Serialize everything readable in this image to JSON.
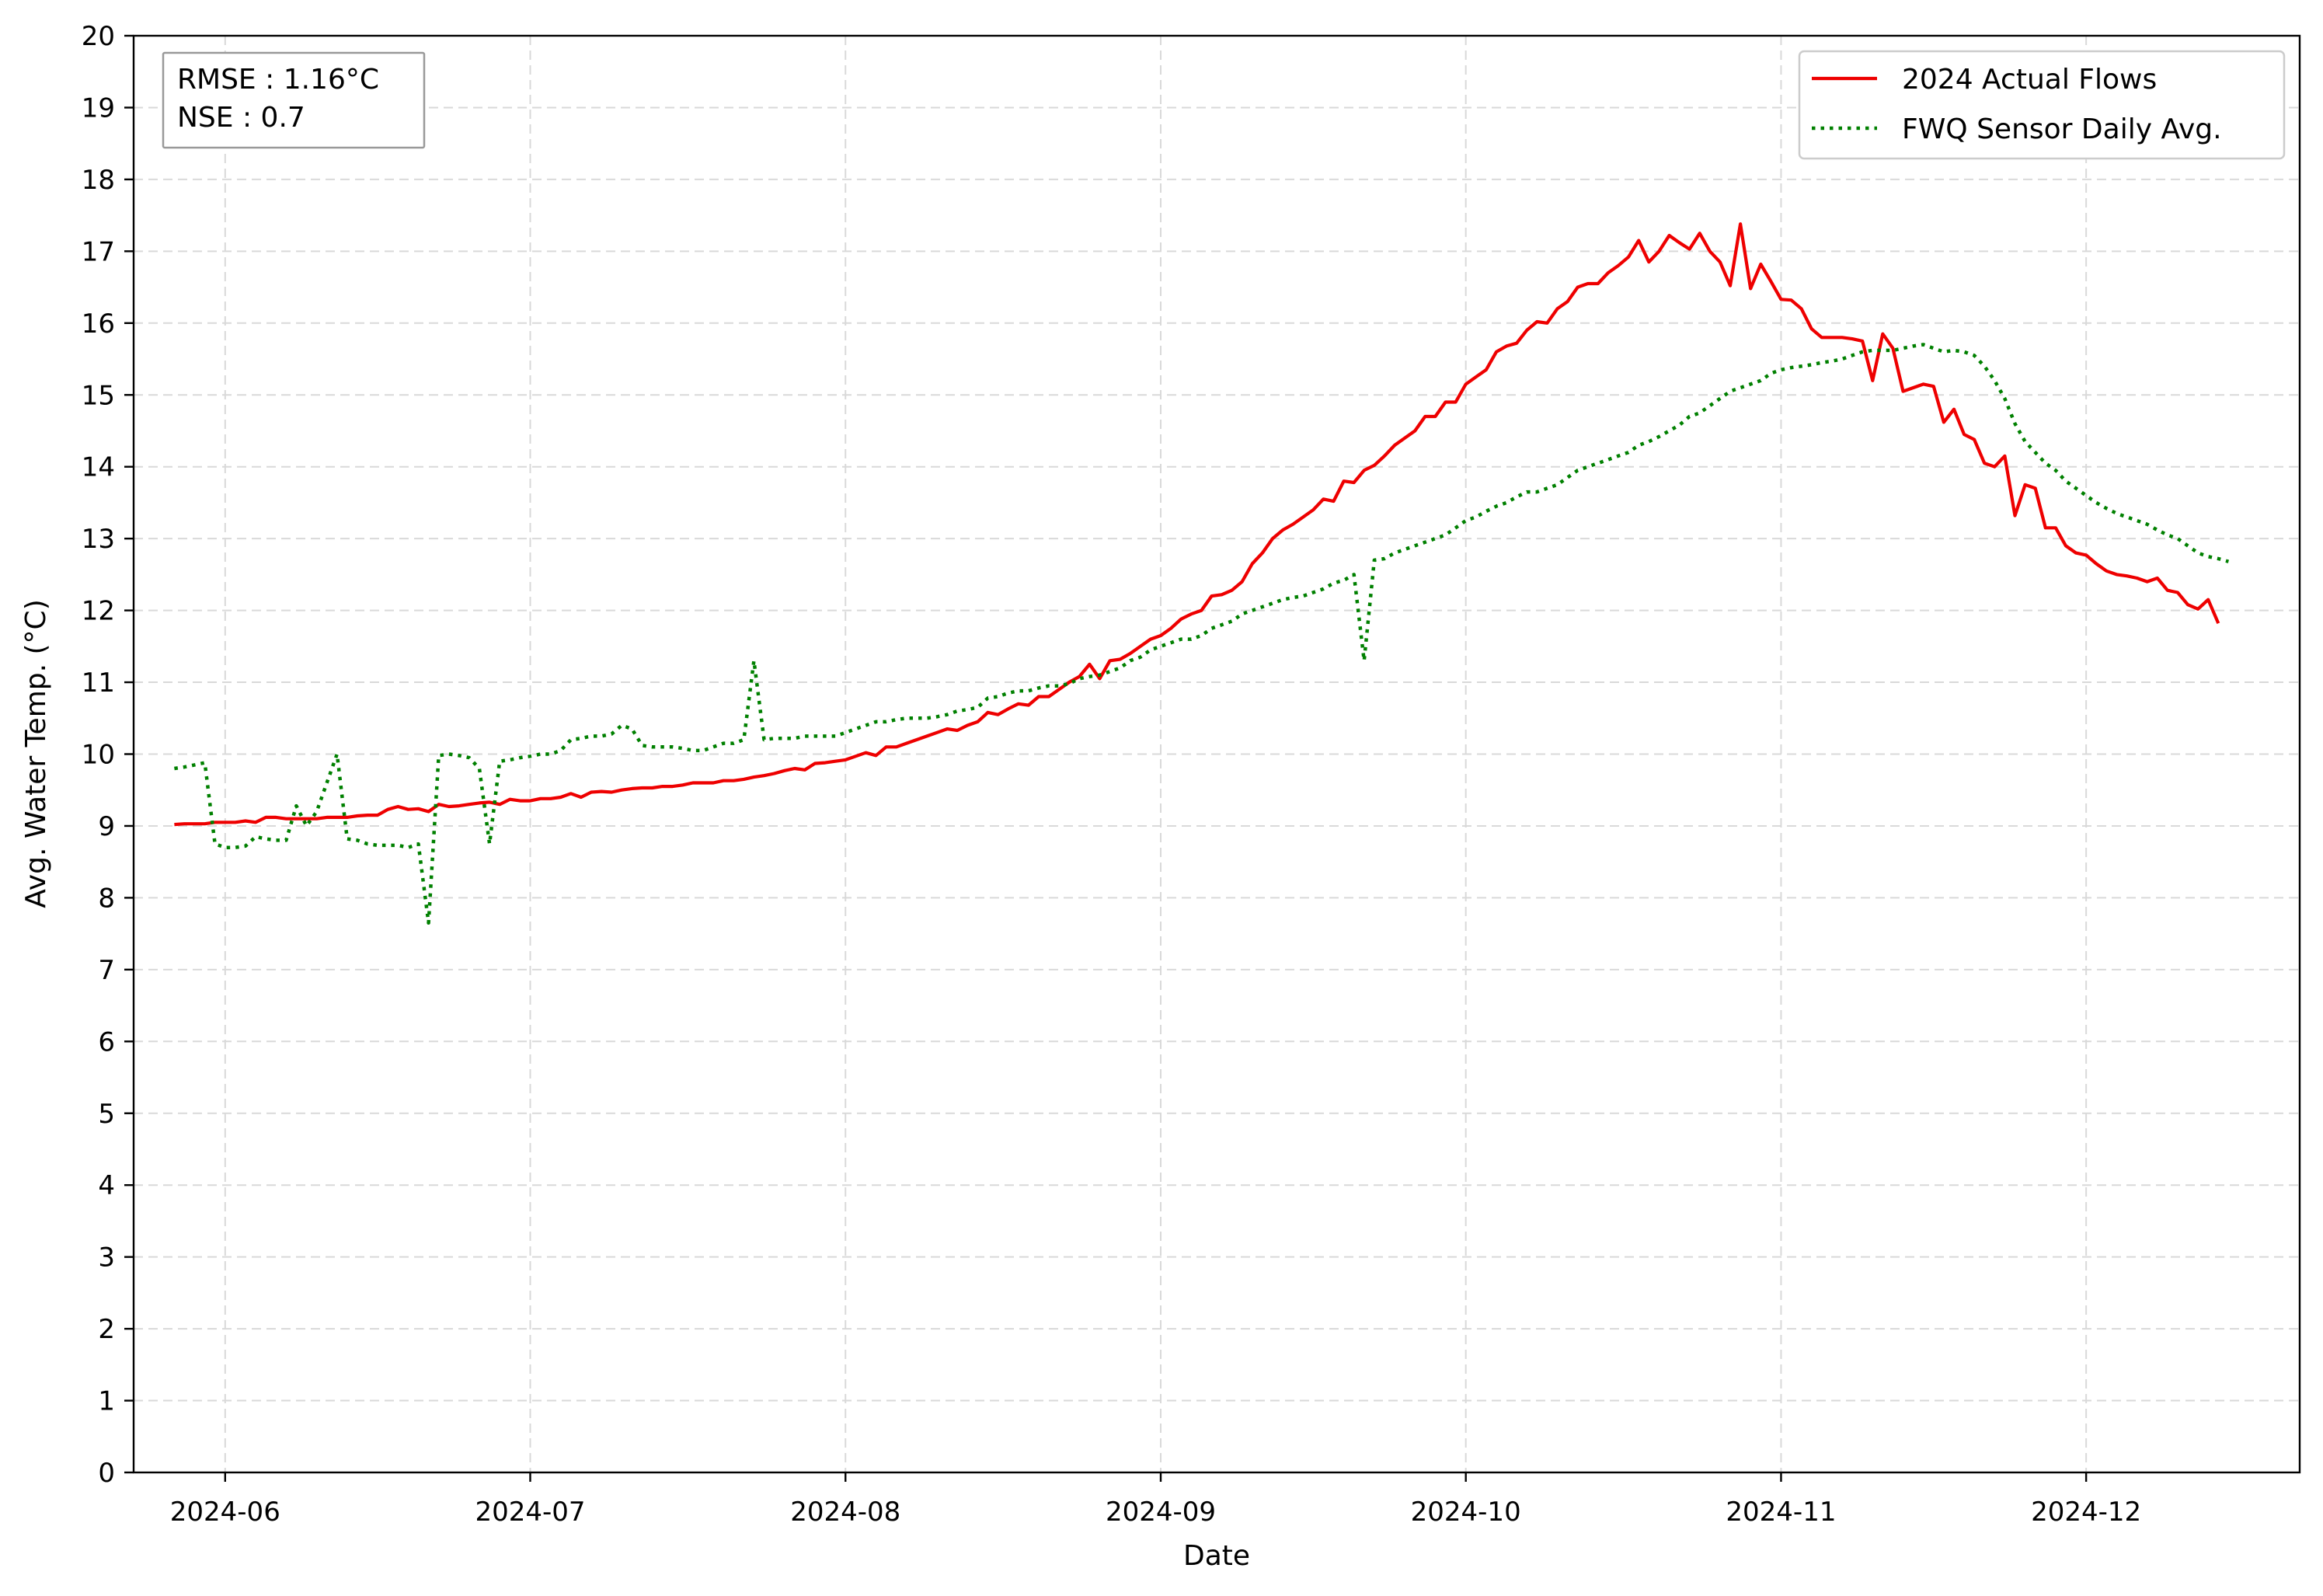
{
  "chart_data": {
    "type": "line",
    "xlabel": "Date",
    "ylabel": "Avg. Water Temp. (°C)",
    "x_start": "2024-05-27",
    "x_end": "2024-12-15",
    "xlim": [
      "2024-05-23",
      "2024-12-22"
    ],
    "ylim": [
      0,
      20
    ],
    "yticks": [
      0,
      1,
      2,
      3,
      4,
      5,
      6,
      7,
      8,
      9,
      10,
      11,
      12,
      13,
      14,
      15,
      16,
      17,
      18,
      19,
      20
    ],
    "xticks": [
      {
        "date": "2024-06-01",
        "label": "2024-06"
      },
      {
        "date": "2024-07-01",
        "label": "2024-07"
      },
      {
        "date": "2024-08-01",
        "label": "2024-08"
      },
      {
        "date": "2024-09-01",
        "label": "2024-09"
      },
      {
        "date": "2024-10-01",
        "label": "2024-10"
      },
      {
        "date": "2024-11-01",
        "label": "2024-11"
      },
      {
        "date": "2024-12-01",
        "label": "2024-12"
      }
    ],
    "grid": true,
    "grid_style": "dashed",
    "legend_position": "top-right",
    "stats_box": {
      "rmse": "RMSE : 1.16°C",
      "nse": "NSE : 0.7"
    },
    "series": [
      {
        "name": "2024 Actual Flows",
        "color": "#ee0000",
        "style": "solid",
        "values": [
          9.02,
          9.03,
          9.03,
          9.03,
          9.05,
          9.05,
          9.05,
          9.07,
          9.05,
          9.12,
          9.12,
          9.1,
          9.1,
          9.1,
          9.1,
          9.12,
          9.12,
          9.12,
          9.14,
          9.15,
          9.15,
          9.23,
          9.27,
          9.23,
          9.24,
          9.2,
          9.3,
          9.27,
          9.28,
          9.3,
          9.32,
          9.33,
          9.3,
          9.37,
          9.35,
          9.35,
          9.38,
          9.38,
          9.4,
          9.45,
          9.4,
          9.47,
          9.48,
          9.47,
          9.5,
          9.52,
          9.53,
          9.53,
          9.55,
          9.55,
          9.57,
          9.6,
          9.6,
          9.6,
          9.63,
          9.63,
          9.65,
          9.68,
          9.7,
          9.73,
          9.77,
          9.8,
          9.78,
          9.87,
          9.88,
          9.9,
          9.92,
          9.97,
          10.02,
          9.98,
          10.1,
          10.1,
          10.15,
          10.2,
          10.25,
          10.3,
          10.35,
          10.33,
          10.4,
          10.45,
          10.58,
          10.55,
          10.63,
          10.7,
          10.68,
          10.8,
          10.8,
          10.9,
          11.0,
          11.08,
          11.25,
          11.05,
          11.3,
          11.32,
          11.4,
          11.5,
          11.6,
          11.65,
          11.75,
          11.88,
          11.95,
          12.0,
          12.2,
          12.22,
          12.28,
          12.4,
          12.65,
          12.8,
          13.0,
          13.12,
          13.2,
          13.3,
          13.4,
          13.55,
          13.52,
          13.8,
          13.78,
          13.95,
          14.02,
          14.15,
          14.3,
          14.4,
          14.5,
          14.7,
          14.7,
          14.9,
          14.9,
          15.15,
          15.25,
          15.35,
          15.6,
          15.68,
          15.72,
          15.9,
          16.02,
          16.0,
          16.2,
          16.3,
          16.5,
          16.55,
          16.55,
          16.7,
          16.8,
          16.92,
          17.15,
          16.85,
          17.0,
          17.22,
          17.12,
          17.03,
          17.25,
          17.0,
          16.85,
          16.52,
          17.38,
          16.48,
          16.82,
          16.58,
          16.33,
          16.32,
          16.2,
          15.92,
          15.8,
          15.8,
          15.8,
          15.78,
          15.75,
          15.2,
          15.85,
          15.65,
          15.05,
          15.1,
          15.15,
          15.12,
          14.62,
          14.8,
          14.45,
          14.38,
          14.05,
          14.0,
          14.15,
          13.32,
          13.75,
          13.7,
          13.15,
          13.15,
          12.9,
          12.8,
          12.77,
          12.65,
          12.55,
          12.5,
          12.48,
          12.45,
          12.4,
          12.45,
          12.28,
          12.25,
          12.08,
          12.02,
          12.15,
          11.82
        ]
      },
      {
        "name": "FWQ Sensor Daily Avg.",
        "color": "#008000",
        "style": "dotted",
        "values": [
          9.8,
          9.82,
          9.85,
          9.88,
          8.75,
          8.7,
          8.7,
          8.72,
          8.85,
          8.82,
          8.8,
          8.8,
          9.28,
          9.0,
          9.2,
          9.6,
          10.0,
          8.82,
          8.8,
          8.75,
          8.73,
          8.73,
          8.73,
          8.7,
          8.75,
          7.65,
          9.98,
          10.0,
          9.98,
          9.95,
          9.8,
          8.75,
          9.9,
          9.92,
          9.95,
          9.97,
          10.0,
          10.0,
          10.05,
          10.2,
          10.22,
          10.25,
          10.25,
          10.28,
          10.4,
          10.35,
          10.12,
          10.1,
          10.1,
          10.1,
          10.08,
          10.05,
          10.05,
          10.1,
          10.15,
          10.15,
          10.2,
          11.3,
          10.2,
          10.22,
          10.22,
          10.22,
          10.25,
          10.25,
          10.25,
          10.25,
          10.3,
          10.35,
          10.4,
          10.45,
          10.45,
          10.48,
          10.5,
          10.5,
          10.5,
          10.52,
          10.55,
          10.6,
          10.62,
          10.65,
          10.78,
          10.8,
          10.85,
          10.88,
          10.88,
          10.92,
          10.95,
          10.95,
          10.98,
          11.05,
          11.08,
          11.1,
          11.15,
          11.2,
          11.3,
          11.35,
          11.45,
          11.5,
          11.55,
          11.6,
          11.6,
          11.65,
          11.75,
          11.8,
          11.85,
          11.95,
          12.0,
          12.05,
          12.1,
          12.15,
          12.18,
          12.2,
          12.25,
          12.3,
          12.38,
          12.42,
          12.5,
          11.3,
          12.7,
          12.72,
          12.8,
          12.85,
          12.9,
          12.95,
          13.0,
          13.05,
          13.15,
          13.25,
          13.3,
          13.38,
          13.45,
          13.5,
          13.58,
          13.65,
          13.65,
          13.7,
          13.75,
          13.85,
          13.95,
          14.0,
          14.05,
          14.1,
          14.15,
          14.2,
          14.3,
          14.35,
          14.42,
          14.5,
          14.58,
          14.7,
          14.75,
          14.85,
          14.95,
          15.05,
          15.1,
          15.15,
          15.2,
          15.3,
          15.35,
          15.38,
          15.4,
          15.42,
          15.45,
          15.47,
          15.5,
          15.55,
          15.6,
          15.62,
          15.62,
          15.62,
          15.65,
          15.68,
          15.7,
          15.65,
          15.6,
          15.62,
          15.6,
          15.55,
          15.4,
          15.2,
          14.95,
          14.6,
          14.35,
          14.2,
          14.05,
          13.95,
          13.8,
          13.7,
          13.6,
          13.5,
          13.42,
          13.35,
          13.3,
          13.25,
          13.2,
          13.12,
          13.05,
          13.0,
          12.9,
          12.8,
          12.75,
          12.72,
          12.68
        ]
      }
    ]
  }
}
